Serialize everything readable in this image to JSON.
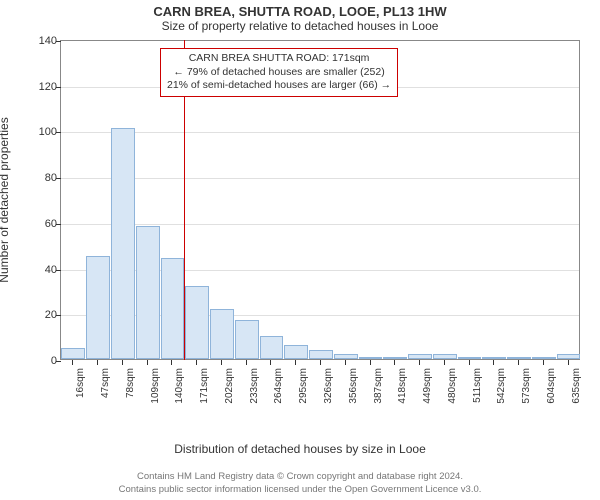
{
  "title": "CARN BREA, SHUTTA ROAD, LOOE, PL13 1HW",
  "subtitle": "Size of property relative to detached houses in Looe",
  "ylabel": "Number of detached properties",
  "xlabel": "Distribution of detached houses by size in Looe",
  "chart": {
    "type": "histogram",
    "ylim": [
      0,
      140
    ],
    "ytick_step": 20,
    "bar_fill": "#d7e6f5",
    "bar_border": "#8fb4da",
    "grid_color": "#e0e0e0",
    "axis_color": "#888888",
    "marker_color": "#cc0000",
    "background": "#ffffff",
    "label_fontsize": 12,
    "tick_fontsize": 11,
    "xtick_fontsize": 10,
    "xtick_rotation": -90,
    "categories": [
      "16sqm",
      "47sqm",
      "78sqm",
      "109sqm",
      "140sqm",
      "171sqm",
      "202sqm",
      "233sqm",
      "264sqm",
      "295sqm",
      "326sqm",
      "356sqm",
      "387sqm",
      "418sqm",
      "449sqm",
      "480sqm",
      "511sqm",
      "542sqm",
      "573sqm",
      "604sqm",
      "635sqm"
    ],
    "values": [
      5,
      45,
      101,
      58,
      44,
      32,
      22,
      17,
      10,
      6,
      4,
      2,
      0,
      0,
      2,
      2,
      0,
      0,
      0,
      0,
      2
    ],
    "marker_index": 5
  },
  "callout": {
    "line1": "CARN BREA SHUTTA ROAD: 171sqm",
    "line2": "← 79% of detached houses are smaller (252)",
    "line3": "21% of semi-detached houses are larger (66) →"
  },
  "footer": {
    "line1": "Contains HM Land Registry data © Crown copyright and database right 2024.",
    "line2": "Contains public sector information licensed under the Open Government Licence v3.0."
  }
}
